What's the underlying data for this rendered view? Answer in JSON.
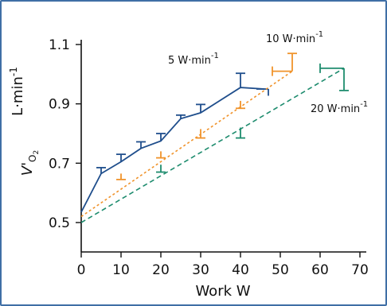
{
  "chart_data": {
    "type": "line",
    "xlabel": "Work  W",
    "ylabel_main": "V'",
    "ylabel_sub": "O",
    "ylabel_subsub": "2",
    "ylabel_unit": "L·min",
    "ylabel_unit_exp": "-1",
    "xlim": [
      0,
      70
    ],
    "ylim": [
      0.5,
      1.1
    ],
    "x_ticks": [
      "0",
      "10",
      "20",
      "30",
      "40",
      "50",
      "60",
      "70"
    ],
    "y_ticks": [
      "0.5",
      "0.7",
      "0.9",
      "1.1"
    ],
    "x_tick_values": [
      0,
      10,
      20,
      30,
      40,
      50,
      60,
      70
    ],
    "y_tick_values": [
      0.5,
      0.7,
      0.9,
      1.1
    ],
    "series": [
      {
        "name": "5 W·min",
        "name_exp": "-1",
        "color": "#1f4e8c",
        "style": "solid",
        "x": [
          0,
          5,
          10,
          15,
          20,
          25,
          30,
          40,
          46
        ],
        "y": [
          0.535,
          0.665,
          0.705,
          0.75,
          0.775,
          0.85,
          0.87,
          0.955,
          0.95
        ],
        "error_bars": [
          {
            "x": 5,
            "y": 0.665,
            "err": 0.02,
            "dir": "up"
          },
          {
            "x": 10,
            "y": 0.705,
            "err": 0.025,
            "dir": "up"
          },
          {
            "x": 15,
            "y": 0.75,
            "err": 0.022,
            "dir": "up"
          },
          {
            "x": 20,
            "y": 0.775,
            "err": 0.025,
            "dir": "up"
          },
          {
            "x": 25,
            "y": 0.85,
            "err": 0.012,
            "dir": "up"
          },
          {
            "x": 30,
            "y": 0.87,
            "err": 0.028,
            "dir": "up"
          },
          {
            "x": 40,
            "y": 0.955,
            "err": 0.048,
            "dir": "up"
          },
          {
            "x": 46,
            "y": 0.95,
            "err": 0.012,
            "dir": "flag"
          }
        ]
      },
      {
        "name": "10 W·min",
        "name_exp": "-1",
        "color": "#f0932b",
        "style": "dotted",
        "x": [
          0,
          53
        ],
        "y": [
          0.52,
          1.01
        ],
        "error_bars": [
          {
            "x": 10,
            "y": 0.665,
            "err": 0.02,
            "dir": "down"
          },
          {
            "x": 20,
            "y": 0.74,
            "err": 0.022,
            "dir": "down"
          },
          {
            "x": 30,
            "y": 0.815,
            "err": 0.03,
            "dir": "down"
          },
          {
            "x": 40,
            "y": 0.91,
            "err": 0.025,
            "dir": "down"
          },
          {
            "x": 53,
            "y": 1.01,
            "err": 0.06,
            "dir": "up"
          },
          {
            "x": 53,
            "y": 1.01,
            "err": 5,
            "dir": "left"
          }
        ]
      },
      {
        "name": "20 W·min",
        "name_exp": "-1",
        "color": "#1e8c6e",
        "style": "dashed",
        "x": [
          0,
          66
        ],
        "y": [
          0.5,
          1.02
        ],
        "error_bars": [
          {
            "x": 20,
            "y": 0.695,
            "err": 0.025,
            "dir": "down"
          },
          {
            "x": 40,
            "y": 0.82,
            "err": 0.035,
            "dir": "down"
          },
          {
            "x": 66,
            "y": 1.02,
            "err": 0.075,
            "dir": "down"
          },
          {
            "x": 66,
            "y": 1.02,
            "err": 6,
            "dir": "left"
          }
        ]
      }
    ]
  }
}
